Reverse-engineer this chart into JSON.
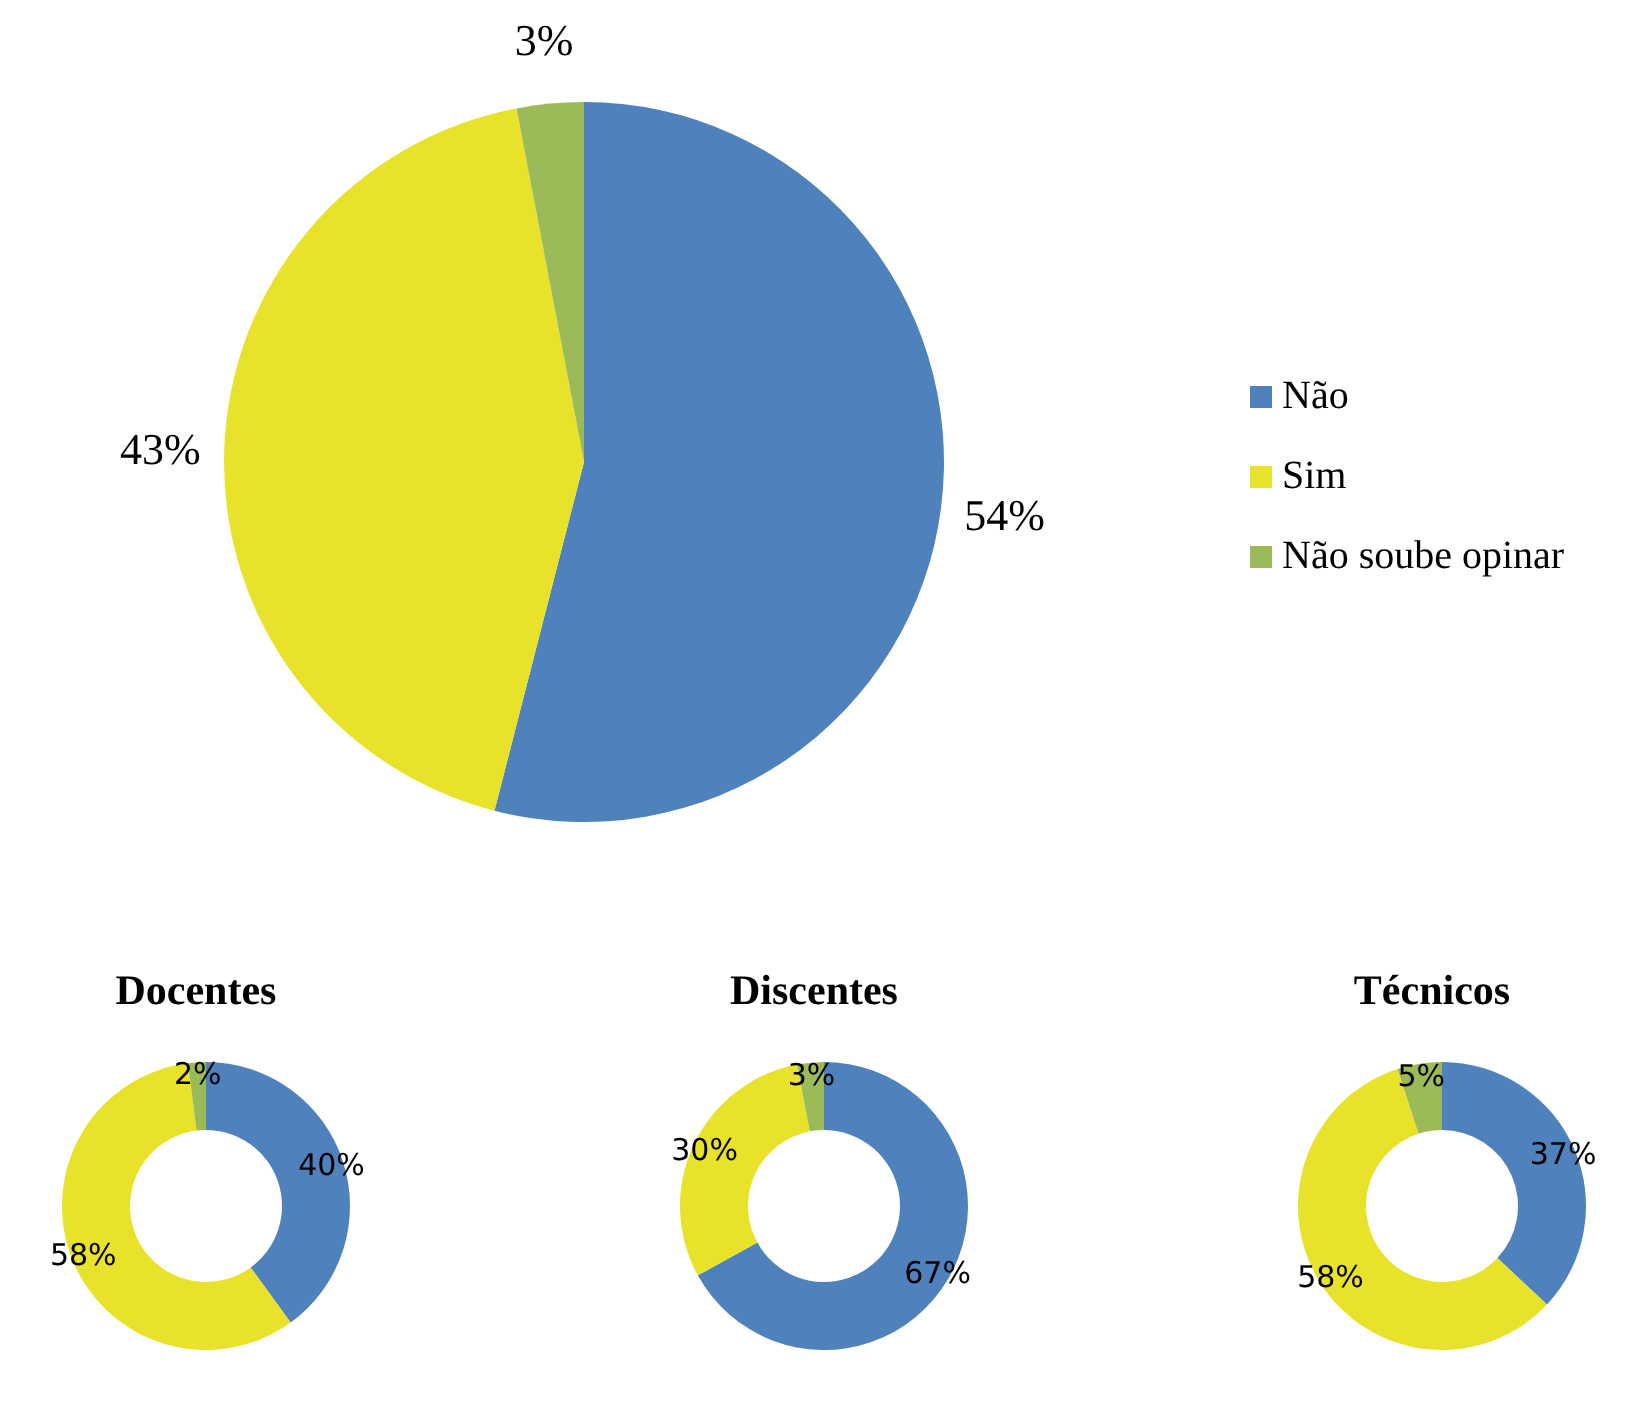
{
  "chart_data": [
    {
      "type": "pie",
      "categories": [
        "Não",
        "Sim",
        "Não soube opinar"
      ],
      "values": [
        54,
        43,
        3
      ],
      "colors": [
        "#4f81bd",
        "#e8e22a",
        "#9bbb59"
      ],
      "value_labels": [
        "54%",
        "43%",
        "3%"
      ],
      "legend": "right"
    },
    {
      "type": "donut",
      "title": "Docentes",
      "categories": [
        null,
        null,
        null
      ],
      "values": [
        40,
        58,
        2
      ],
      "colors": [
        "#4f81bd",
        "#e8e22a",
        "#9bbb59"
      ],
      "value_labels": [
        "40%",
        "58%",
        "2%"
      ]
    },
    {
      "type": "donut",
      "title": "Discentes",
      "categories": [
        null,
        null,
        null
      ],
      "values": [
        67,
        30,
        3
      ],
      "colors": [
        "#4f81bd",
        "#e8e22a",
        "#9bbb59"
      ],
      "value_labels": [
        "67%",
        "30%",
        "3%"
      ]
    },
    {
      "type": "donut",
      "title": "Técnicos",
      "categories": [
        null,
        null,
        null
      ],
      "values": [
        37,
        58,
        5
      ],
      "colors": [
        "#4f81bd",
        "#e8e22a",
        "#9bbb59"
      ],
      "value_labels": [
        "37%",
        "58%",
        "5%"
      ]
    }
  ]
}
